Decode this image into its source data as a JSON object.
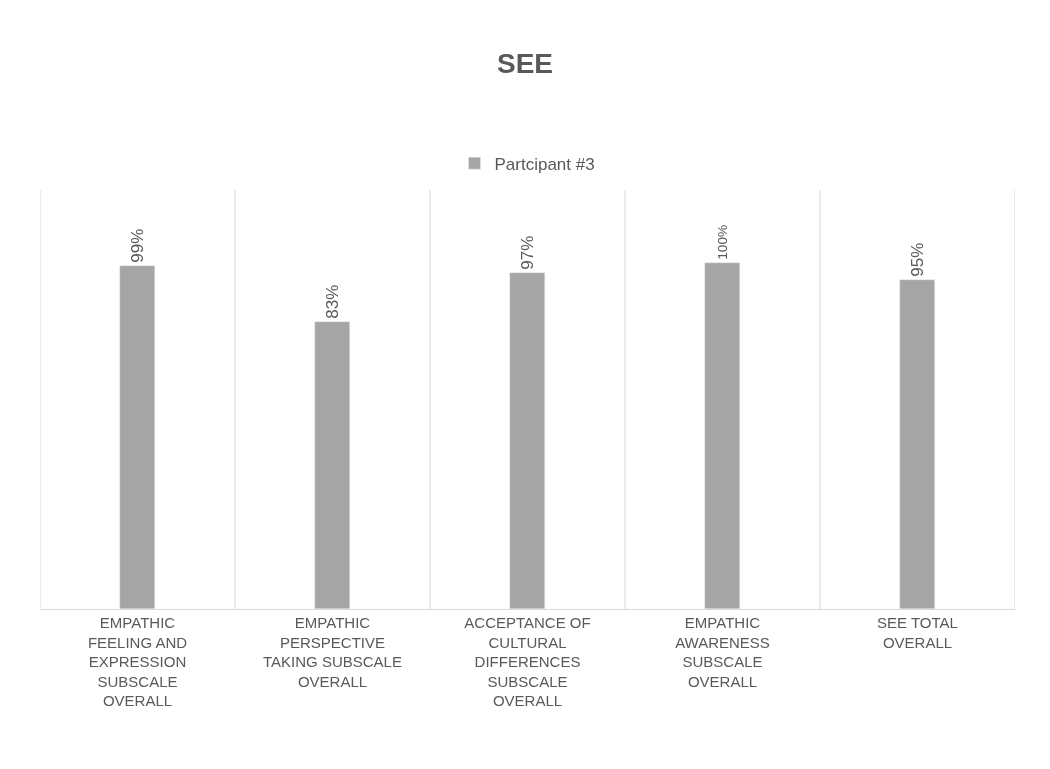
{
  "chart_data": {
    "type": "bar",
    "title": "SEE",
    "categories": [
      "EMPATHIC FEELING AND EXPRESSION SUBSCALE OVERALL",
      "EMPATHIC PERSPECTIVE TAKING SUBSCALE OVERALL",
      "ACCEPTANCE OF CULTURAL DIFFERENCES SUBSCALE OVERALL",
      "EMPATHIC AWARENESS SUBSCALE OVERALL",
      "SEE TOTAL OVERALL"
    ],
    "series": [
      {
        "name": "Partcipant #3",
        "color": "#a5a5a5",
        "values": [
          99,
          83,
          97,
          100,
          95
        ],
        "value_labels": [
          "99%",
          "83%",
          "97%",
          "100%",
          "95%"
        ]
      }
    ],
    "ylim": [
      0,
      121
    ],
    "tick_labels": "x",
    "grid": "x",
    "legend": "top"
  }
}
